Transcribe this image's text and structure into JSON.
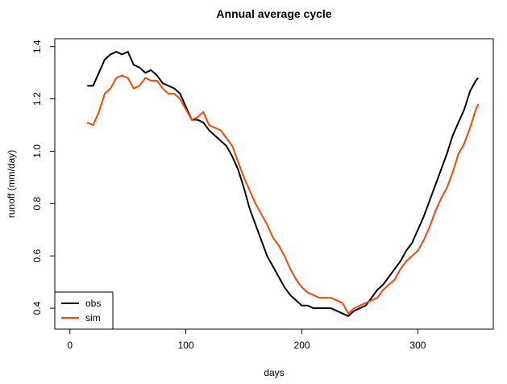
{
  "chart_data": {
    "type": "line",
    "title": "Annual average cycle",
    "xlabel": "days",
    "ylabel": "runoff (mm/day)",
    "x": [
      15,
      20,
      25,
      30,
      35,
      40,
      45,
      50,
      55,
      60,
      65,
      70,
      75,
      80,
      85,
      90,
      95,
      100,
      105,
      110,
      115,
      120,
      125,
      130,
      135,
      140,
      145,
      150,
      155,
      160,
      165,
      170,
      175,
      180,
      185,
      190,
      195,
      200,
      205,
      210,
      215,
      220,
      225,
      230,
      235,
      240,
      245,
      250,
      255,
      260,
      265,
      270,
      275,
      280,
      285,
      290,
      295,
      300,
      305,
      310,
      315,
      320,
      325,
      330,
      335,
      340,
      345,
      350,
      352
    ],
    "series": [
      {
        "name": "obs",
        "color": "#000000",
        "values": [
          1.25,
          1.25,
          1.3,
          1.35,
          1.37,
          1.38,
          1.37,
          1.38,
          1.33,
          1.32,
          1.3,
          1.31,
          1.29,
          1.26,
          1.25,
          1.24,
          1.22,
          1.17,
          1.12,
          1.12,
          1.11,
          1.08,
          1.06,
          1.04,
          1.02,
          0.98,
          0.93,
          0.86,
          0.78,
          0.72,
          0.66,
          0.6,
          0.56,
          0.52,
          0.48,
          0.45,
          0.43,
          0.41,
          0.41,
          0.4,
          0.4,
          0.4,
          0.4,
          0.39,
          0.38,
          0.37,
          0.39,
          0.4,
          0.41,
          0.44,
          0.47,
          0.49,
          0.52,
          0.55,
          0.58,
          0.62,
          0.65,
          0.7,
          0.75,
          0.81,
          0.87,
          0.93,
          0.99,
          1.06,
          1.11,
          1.16,
          1.23,
          1.27,
          1.28
        ]
      },
      {
        "name": "sim",
        "color": "#ff4500",
        "values": [
          1.11,
          1.1,
          1.15,
          1.22,
          1.24,
          1.28,
          1.29,
          1.28,
          1.24,
          1.25,
          1.28,
          1.27,
          1.27,
          1.24,
          1.22,
          1.22,
          1.2,
          1.16,
          1.12,
          1.13,
          1.15,
          1.1,
          1.09,
          1.08,
          1.05,
          1.02,
          0.96,
          0.9,
          0.85,
          0.8,
          0.76,
          0.72,
          0.67,
          0.64,
          0.6,
          0.55,
          0.51,
          0.48,
          0.46,
          0.45,
          0.44,
          0.44,
          0.44,
          0.43,
          0.42,
          0.38,
          0.4,
          0.41,
          0.42,
          0.43,
          0.44,
          0.47,
          0.49,
          0.51,
          0.55,
          0.58,
          0.6,
          0.62,
          0.66,
          0.71,
          0.77,
          0.82,
          0.86,
          0.92,
          0.99,
          1.03,
          1.09,
          1.16,
          1.18
        ]
      }
    ],
    "xlim": [
      -13,
      365
    ],
    "ylim": [
      0.32,
      1.43
    ],
    "xticks": [
      0,
      100,
      200,
      300
    ],
    "yticks": [
      0.4,
      0.6,
      0.8,
      {
        "value": 1,
        "label": "1.0"
      },
      1.2,
      1.4
    ],
    "legend": "bottom-left"
  }
}
